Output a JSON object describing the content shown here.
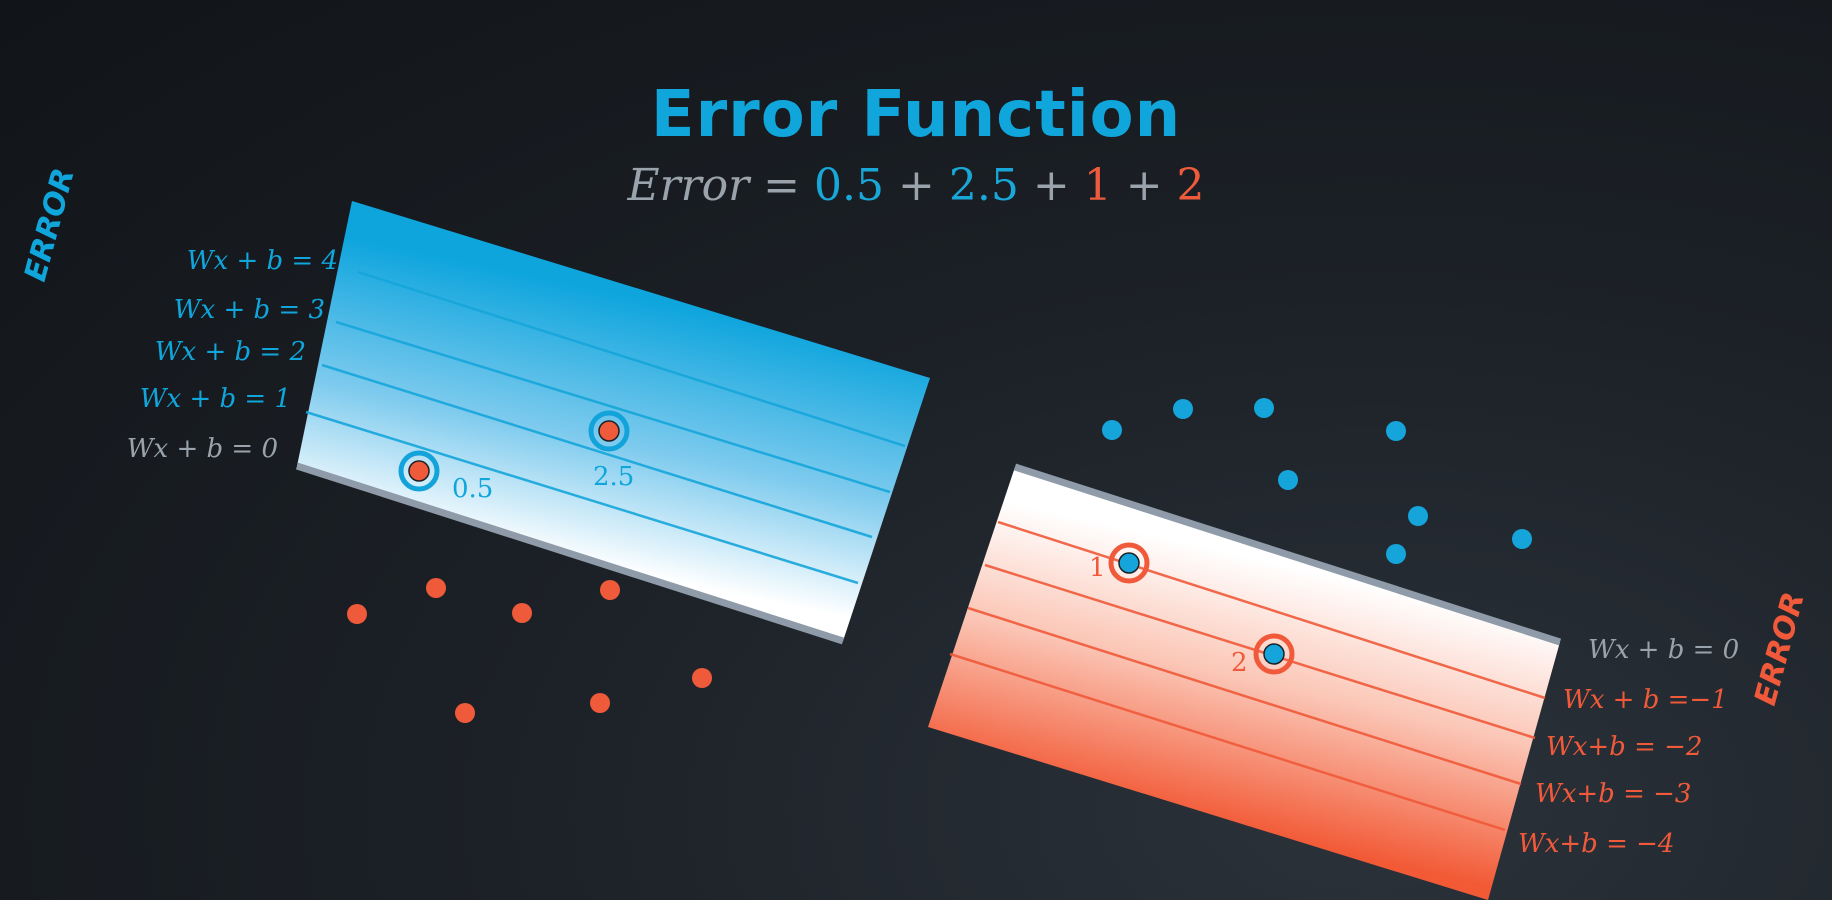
{
  "title": "Error Function",
  "equation": {
    "lhs": "Error",
    "eq": "=",
    "terms": [
      {
        "text": "0.5",
        "color": "#19a7d8"
      },
      {
        "op": "+"
      },
      {
        "text": "2.5",
        "color": "#19a7d8"
      },
      {
        "op": "+"
      },
      {
        "text": "1",
        "color": "#ee5b3c"
      },
      {
        "op": "+"
      },
      {
        "text": "2",
        "color": "#ee5b3c"
      }
    ]
  },
  "blue_region": {
    "side_label": "ERROR",
    "color": "#10a6dc",
    "lines": [
      "Wx + b = 4",
      "Wx + b = 3",
      "Wx + b = 2",
      "Wx + b = 1",
      "Wx + b = 0"
    ],
    "misclassified": [
      {
        "error": "0.5"
      },
      {
        "error": "2.5"
      }
    ]
  },
  "red_region": {
    "side_label": "ERROR",
    "color": "#f05a3a",
    "lines": [
      "Wx + b = 0",
      "Wx + b =−1",
      "Wx+b = −2",
      "Wx+b = −3",
      "Wx+b = −4"
    ],
    "misclassified": [
      {
        "error": "1"
      },
      {
        "error": "2"
      }
    ]
  },
  "colors": {
    "blue": "#10a6dc",
    "red": "#f05a3a",
    "gray_label": "#9aa3ab",
    "boundary": "#8f9ba8"
  }
}
